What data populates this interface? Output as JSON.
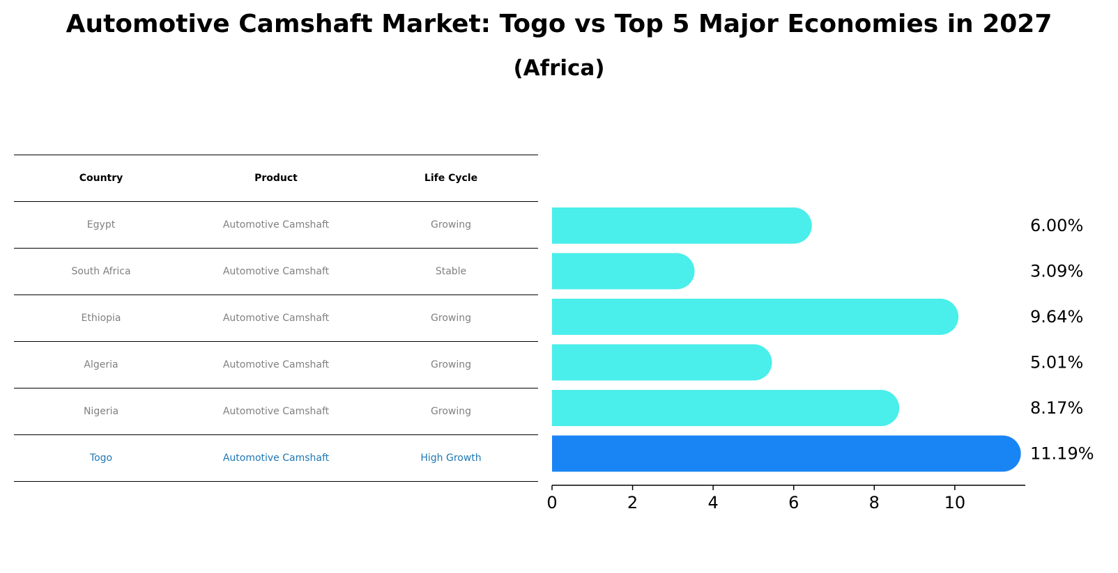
{
  "title": "Automotive Camshaft Market: Togo vs Top 5 Major Economies in 2027",
  "subtitle": "(Africa)",
  "table": {
    "headers": [
      "Country",
      "Product",
      "Life Cycle"
    ],
    "rows": [
      {
        "country": "Egypt",
        "product": "Automotive Camshaft",
        "life_cycle": "Growing"
      },
      {
        "country": "South Africa",
        "product": "Automotive Camshaft",
        "life_cycle": "Stable"
      },
      {
        "country": "Ethiopia",
        "product": "Automotive Camshaft",
        "life_cycle": "Growing"
      },
      {
        "country": "Algeria",
        "product": "Automotive Camshaft",
        "life_cycle": "Growing"
      },
      {
        "country": "Nigeria",
        "product": "Automotive Camshaft",
        "life_cycle": "Growing"
      },
      {
        "country": "Togo",
        "product": "Automotive Camshaft",
        "life_cycle": "High Growth"
      }
    ]
  },
  "chart_data": {
    "type": "bar",
    "orientation": "horizontal",
    "categories": [
      "Egypt",
      "South Africa",
      "Ethiopia",
      "Algeria",
      "Nigeria",
      "Togo"
    ],
    "values": [
      6.0,
      3.09,
      9.64,
      5.01,
      8.17,
      11.19
    ],
    "value_labels": [
      "6.00%",
      "3.09%",
      "9.64%",
      "5.01%",
      "8.17%",
      "11.19%"
    ],
    "xlim": [
      0,
      11.75
    ],
    "xticks": [
      0,
      2,
      4,
      6,
      8,
      10
    ],
    "highlight_index": 5,
    "colors": {
      "default": "#4aeeea",
      "highlight": "#1985f5"
    }
  }
}
